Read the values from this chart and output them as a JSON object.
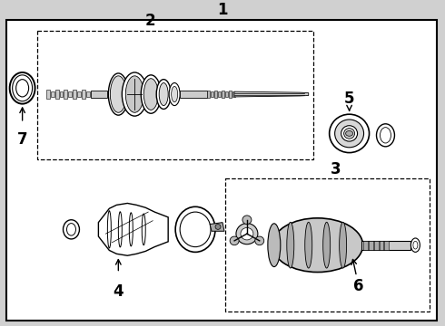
{
  "bg_color": "#d8d8d8",
  "line_color": "#000000",
  "label_1": "1",
  "label_2": "2",
  "label_3": "3",
  "label_4": "4",
  "label_5": "5",
  "label_6": "6",
  "label_7": "7",
  "label_fontsize": 12,
  "fig_bg": "#d0d0d0"
}
